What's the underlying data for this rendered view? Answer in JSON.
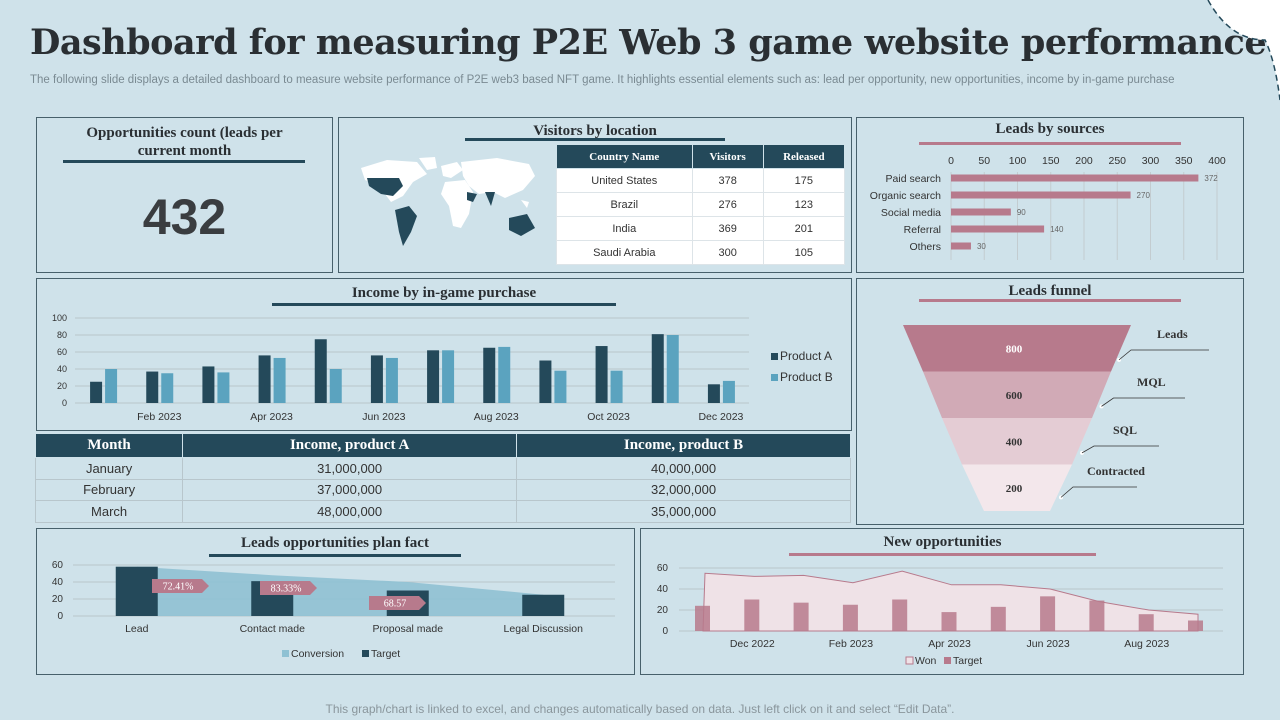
{
  "header": {
    "title": "Dashboard for measuring P2E Web 3 game website performance",
    "subtitle": "The following slide displays a detailed dashboard to measure website performance of P2E web3 based NFT game. It highlights essential elements such as: lead per opportunity, new opportunities, income by in-game purchase"
  },
  "opportunities": {
    "title": "Opportunities count (leads per current month",
    "value": "432"
  },
  "visitors": {
    "title": "Visitors by location",
    "headers": [
      "Country Name",
      "Visitors",
      "Released"
    ],
    "rows": [
      [
        "United States",
        "378",
        "175"
      ],
      [
        "Brazil",
        "276",
        "123"
      ],
      [
        "India",
        "369",
        "201"
      ],
      [
        "Saudi Arabia",
        "300",
        "105"
      ]
    ]
  },
  "income_table": {
    "headers": [
      "Month",
      "Income, product A",
      "Income, product B"
    ],
    "rows": [
      [
        "January",
        "31,000,000",
        "40,000,000"
      ],
      [
        "February",
        "37,000,000",
        "32,000,000"
      ],
      [
        "March",
        "48,000,000",
        "35,000,000"
      ]
    ]
  },
  "footer": "This graph/chart is linked to excel, and changes automatically based on data. Just left click on it and select “Edit Data”.",
  "colors": {
    "dark": "#24495a",
    "light": "#5ba3bf",
    "rose": "#b77a8c",
    "rose_light": "#d9b8c3",
    "area": "#8fc1d3"
  },
  "chart_data": [
    {
      "id": "leads_by_sources",
      "type": "bar",
      "orientation": "horizontal",
      "title": "Leads by sources",
      "categories": [
        "Paid search",
        "Organic search",
        "Social media",
        "Referral",
        "Others"
      ],
      "values": [
        372,
        270,
        90,
        140,
        30
      ],
      "xlim": [
        0,
        400
      ],
      "xticks": [
        "0",
        "50",
        "100",
        "150",
        "200",
        "250",
        "300",
        "350",
        "400"
      ]
    },
    {
      "id": "income_in_game",
      "type": "bar",
      "title": "Income by in-game purchase",
      "x": [
        "Jan 2023",
        "Feb 2023",
        "Mar 2023",
        "Apr 2023",
        "May 2023",
        "Jun 2023",
        "Jul 2023",
        "Aug 2023",
        "Sep 2023",
        "Oct 2023",
        "Nov 2023",
        "Dec 2023"
      ],
      "xtick_labels": [
        "Feb 2023",
        "Apr 2023",
        "Jun 2023",
        "Aug 2023",
        "Oct 2023",
        "Dec 2023"
      ],
      "series": [
        {
          "name": "Product A",
          "values": [
            25,
            37,
            43,
            56,
            75,
            56,
            62,
            65,
            50,
            67,
            81,
            22
          ]
        },
        {
          "name": "Product B",
          "values": [
            40,
            35,
            36,
            53,
            40,
            53,
            62,
            66,
            38,
            38,
            80,
            26
          ]
        }
      ],
      "ylim": [
        0,
        100
      ],
      "yticks": [
        "0",
        "20",
        "40",
        "60",
        "80",
        "100"
      ]
    },
    {
      "id": "leads_funnel",
      "type": "funnel",
      "title": "Leads funnel",
      "stages": [
        {
          "label": "Leads",
          "value": "800"
        },
        {
          "label": "MQL",
          "value": "600"
        },
        {
          "label": "SQL",
          "value": "400"
        },
        {
          "label": "Contracted",
          "value": "200"
        }
      ]
    },
    {
      "id": "leads_plan_fact",
      "type": "bar",
      "title": "Leads opportunities plan fact",
      "categories": [
        "Lead",
        "Contact made",
        "Proposal made",
        "Legal Discussion"
      ],
      "series": [
        {
          "name": "Conversion",
          "type": "area",
          "values": [
            58,
            48,
            40,
            25
          ]
        },
        {
          "name": "Target",
          "values": [
            58,
            41,
            30,
            25
          ]
        }
      ],
      "labels": [
        "72.41%",
        "83.33%",
        "68.57"
      ],
      "ylim": [
        0,
        60
      ],
      "yticks": [
        "0",
        "20",
        "40",
        "60"
      ]
    },
    {
      "id": "new_opportunities",
      "type": "bar",
      "title": "New opportunities",
      "x": [
        "Nov 2022",
        "Dec 2022",
        "Jan 2023",
        "Feb 2023",
        "Mar 2023",
        "Apr 2023",
        "May 2023",
        "Jun 2023",
        "Jul 2023",
        "Aug 2023",
        "Sep 2023"
      ],
      "xtick_labels": [
        "Dec 2022",
        "Feb 2023",
        "Apr 2023",
        "Jun 2023",
        "Aug 2023"
      ],
      "series": [
        {
          "name": "Won",
          "type": "area",
          "values": [
            55,
            52,
            53,
            46,
            57,
            44,
            44,
            40,
            28,
            20,
            16
          ]
        },
        {
          "name": "Target",
          "values": [
            24,
            30,
            27,
            25,
            30,
            18,
            23,
            33,
            29,
            16,
            10
          ]
        }
      ],
      "ylim": [
        0,
        60
      ],
      "yticks": [
        "0",
        "20",
        "40",
        "60"
      ]
    }
  ]
}
